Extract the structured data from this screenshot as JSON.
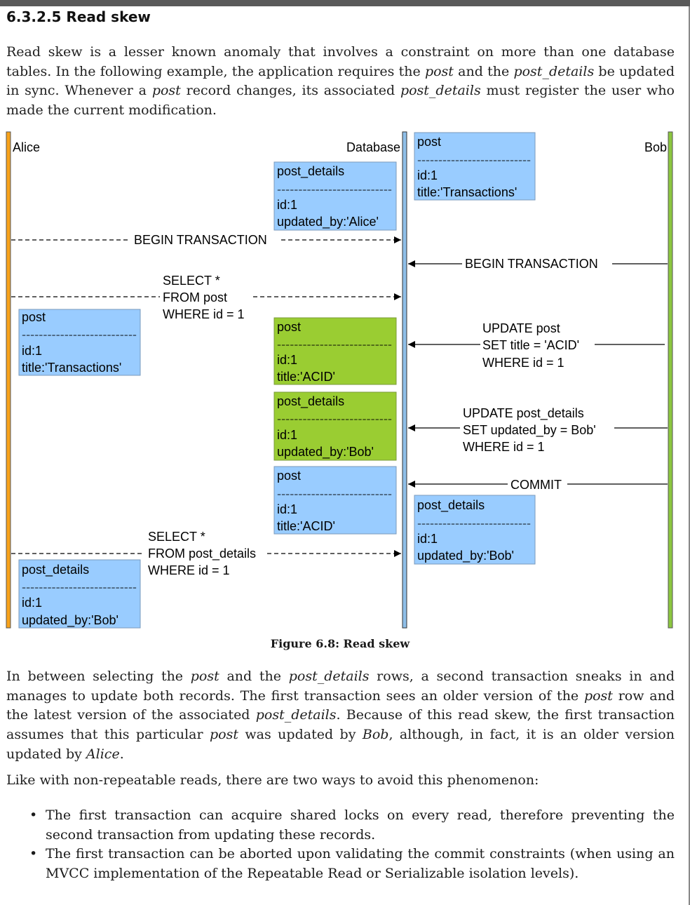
{
  "section": {
    "number_title": "6.3.2.5 Read skew"
  },
  "intro": {
    "t1": "Read skew is a lesser known anomaly that involves a constraint on more than one database tables. In the following example, the application requires the ",
    "e1": "post",
    "t2": " and the ",
    "e2": "post_details",
    "t3": " be updated in sync. Whenever a ",
    "e3": "post",
    "t4": " record changes, its associated ",
    "e4": "post_details",
    "t5": " must register the user who made the current modification."
  },
  "diagram": {
    "lanes": {
      "alice": "Alice",
      "database": "Database",
      "bob": "Bob"
    },
    "colors": {
      "alice": "#f7a21b",
      "database": "#8fbfe8",
      "bob": "#8cc63f",
      "blue_box": "#99ccff",
      "green_box": "#9acd32"
    },
    "box_divider": "---------------------------",
    "boxes": {
      "db_post_initial": {
        "title": "post",
        "line1": "id:1",
        "line2": "title:'Transactions'"
      },
      "db_details_initial": {
        "title": "post_details",
        "line1": "id:1",
        "line2": "updated_by:'Alice'"
      },
      "alice_post": {
        "title": "post",
        "line1": "id:1",
        "line2": "title:'Transactions'"
      },
      "db_post_updated": {
        "title": "post",
        "line1": "id:1",
        "line2": "title:'ACID'"
      },
      "db_details_updated": {
        "title": "post_details",
        "line1": "id:1",
        "line2": "updated_by:'Bob'"
      },
      "db_post_committed": {
        "title": "post",
        "line1": "id:1",
        "line2": "title:'ACID'"
      },
      "db_details_committed": {
        "title": "post_details",
        "line1": "id:1",
        "line2": "updated_by:'Bob'"
      },
      "alice_details": {
        "title": "post_details",
        "line1": "id:1",
        "line2": "updated_by:'Bob'"
      }
    },
    "messages": {
      "alice_begin": "BEGIN TRANSACTION",
      "bob_begin": "BEGIN TRANSACTION",
      "select_post": [
        "SELECT *",
        "FROM post",
        "WHERE id = 1"
      ],
      "update_post": [
        "UPDATE post",
        "SET title = 'ACID'",
        "WHERE id = 1"
      ],
      "update_details": [
        "UPDATE post_details",
        "SET updated_by = Bob'",
        "WHERE id = 1"
      ],
      "commit": "COMMIT",
      "select_details": [
        "SELECT *",
        "FROM post_details",
        "WHERE id = 1"
      ]
    },
    "caption": "Figure 6.8: Read skew"
  },
  "after": {
    "t1": "In between selecting the ",
    "e1": "post",
    "t2": " and the ",
    "e2": "post_details",
    "t3": " rows, a second transaction sneaks in and manages to update both records. The first transaction sees an older version of the ",
    "e3": "post",
    "t4": " row and the latest version of the associated ",
    "e4": "post_details",
    "t5": ". Because of this read skew, the first transaction assumes that this particular ",
    "e5": "post",
    "t6": " was updated by ",
    "e6": "Bob",
    "t7": ", although, in fact, it is an older version updated by ",
    "e7": "Alice",
    "t8": "."
  },
  "avoid_intro": "Like with non-repeatable reads, there are two ways to avoid this phenomenon:",
  "bullets": [
    "The first transaction can acquire shared locks on every read, therefore preventing the second transaction from updating these records.",
    "The first transaction can be aborted upon validating the commit constraints (when using an MVCC implementation of the Repeatable Read or Serializable isolation levels)."
  ]
}
